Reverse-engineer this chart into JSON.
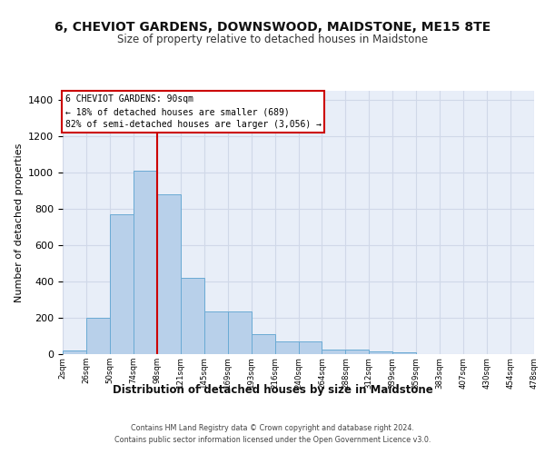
{
  "title": "6, CHEVIOT GARDENS, DOWNSWOOD, MAIDSTONE, ME15 8TE",
  "subtitle": "Size of property relative to detached houses in Maidstone",
  "xlabel": "Distribution of detached houses by size in Maidstone",
  "ylabel": "Number of detached properties",
  "bar_values": [
    20,
    200,
    770,
    1010,
    880,
    420,
    235,
    235,
    110,
    70,
    70,
    25,
    25,
    15,
    10,
    0,
    0,
    0,
    0,
    0
  ],
  "bin_labels": [
    "2sqm",
    "26sqm",
    "50sqm",
    "74sqm",
    "98sqm",
    "121sqm",
    "145sqm",
    "169sqm",
    "193sqm",
    "216sqm",
    "240sqm",
    "264sqm",
    "288sqm",
    "312sqm",
    "339sqm",
    "359sqm",
    "383sqm",
    "407sqm",
    "430sqm",
    "454sqm",
    "478sqm"
  ],
  "bar_color": "#b8d0ea",
  "bar_edge_color": "#6aaad4",
  "grid_color": "#d0d8e8",
  "background_color": "#e8eef8",
  "vline_color": "#cc0000",
  "vline_pos": 4.0,
  "annotation_text": "6 CHEVIOT GARDENS: 90sqm\n← 18% of detached houses are smaller (689)\n82% of semi-detached houses are larger (3,056) →",
  "annotation_box_color": "#cc0000",
  "ylim": [
    0,
    1450
  ],
  "yticks": [
    0,
    200,
    400,
    600,
    800,
    1000,
    1200,
    1400
  ],
  "footer_line1": "Contains HM Land Registry data © Crown copyright and database right 2024.",
  "footer_line2": "Contains public sector information licensed under the Open Government Licence v3.0."
}
